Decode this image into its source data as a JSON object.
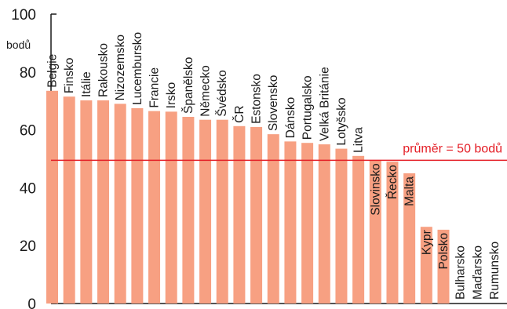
{
  "chart_data": {
    "type": "bar",
    "ylabel": "bodů",
    "ylim": [
      0,
      100
    ],
    "yticks": [
      "0",
      "20",
      "40",
      "60",
      "80",
      "100"
    ],
    "categories": [
      "Belgie",
      "Finsko",
      "Itálie",
      "Rakousko",
      "Nizozemsko",
      "Lucembursko",
      "Francie",
      "Irsko",
      "Španělsko",
      "Německo",
      "Švédsko",
      "ČR",
      "Estonsko",
      "Slovensko",
      "Dánsko",
      "Portugalsko",
      "Velká Británie",
      "Lotyšsko",
      "Litva",
      "Slovinsko",
      "Řecko",
      "Malta",
      "Kypr",
      "Polsko",
      "Bulharsko",
      "Maďarsko",
      "Rumunsko"
    ],
    "values": [
      73.5,
      71.5,
      70.2,
      70.2,
      69,
      67.5,
      66.5,
      66.3,
      64.5,
      63.5,
      63.5,
      61.3,
      61,
      58.5,
      56,
      55.5,
      55,
      53.5,
      51,
      49.5,
      49,
      45,
      26.5,
      25.5,
      0,
      0,
      0
    ],
    "highlight_category": "ČR",
    "average": {
      "value": 49.5,
      "label": "průměr = 50 bodů"
    },
    "grid": false
  },
  "colors": {
    "bar": "#f7a082",
    "axis": "#1a1a1a",
    "text": "#1a1a1a",
    "highlight_text": "#e41e26",
    "average_line": "#e41e26"
  }
}
